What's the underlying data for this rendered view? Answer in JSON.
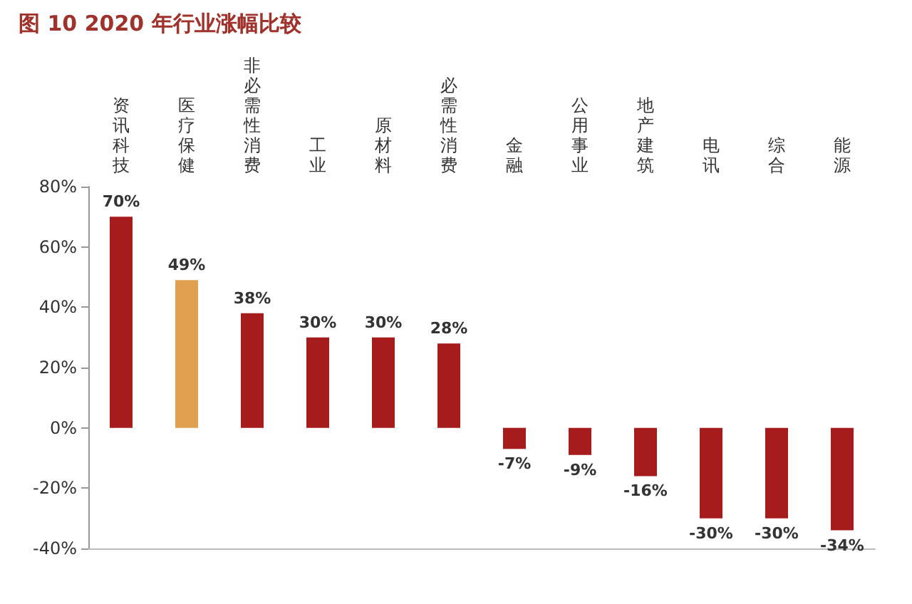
{
  "chart_data": {
    "type": "bar",
    "title": "图 10 2020 年行业涨幅比较",
    "categories": [
      "资讯科技",
      "医疗保健",
      "非必需性消费",
      "工业",
      "原材料",
      "必需性消费",
      "金融",
      "公用事业",
      "地产建筑",
      "电讯",
      "综合",
      "能源"
    ],
    "values": [
      70,
      49,
      38,
      30,
      30,
      28,
      -7,
      -9,
      -16,
      -30,
      -30,
      -34
    ],
    "colors": [
      "#a61b1b",
      "#e0a050",
      "#a61b1b",
      "#a61b1b",
      "#a61b1b",
      "#a61b1b",
      "#a61b1b",
      "#a61b1b",
      "#a61b1b",
      "#a61b1b",
      "#a61b1b",
      "#a61b1b"
    ],
    "value_labels": [
      "70%",
      "49%",
      "38%",
      "30%",
      "30%",
      "28%",
      "-7%",
      "-9%",
      "-16%",
      "-30%",
      "-30%",
      "-34%"
    ],
    "ylim": [
      -40,
      80
    ],
    "yticks": [
      {
        "value": -40,
        "label": "-40%"
      },
      {
        "value": -20,
        "label": "-20%"
      },
      {
        "value": 0,
        "label": "0%"
      },
      {
        "value": 20,
        "label": "20%"
      },
      {
        "value": 40,
        "label": "40%"
      },
      {
        "value": 60,
        "label": "60%"
      },
      {
        "value": 80,
        "label": "80%"
      }
    ],
    "grid": false
  }
}
